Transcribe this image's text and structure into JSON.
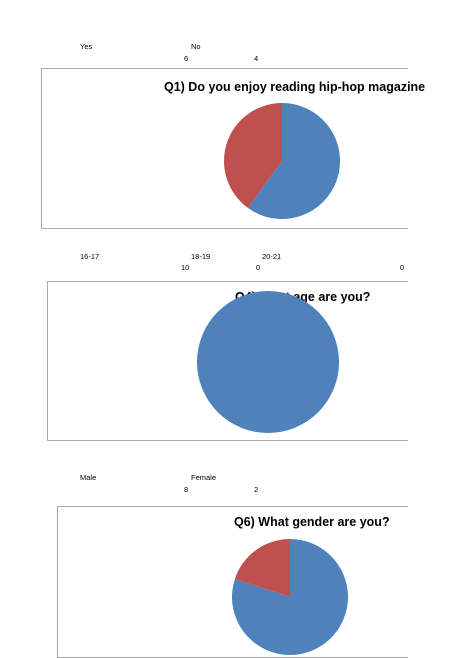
{
  "colors": {
    "blue": "#4f81bd",
    "red": "#c0504d",
    "border": "#a8a8a8"
  },
  "tables": [
    {
      "labels": [
        "Yes",
        "No"
      ],
      "values": [
        "6",
        "4"
      ]
    },
    {
      "labels": [
        "16-17",
        "18-19",
        "20-21"
      ],
      "values": [
        "10",
        "0",
        "0"
      ]
    },
    {
      "labels": [
        "Male",
        "Female"
      ],
      "values": [
        "8",
        "2"
      ]
    }
  ],
  "chart_data": [
    {
      "type": "pie",
      "title": "Q1) Do you enjoy reading hip-hop magazine",
      "categories": [
        "Yes",
        "No"
      ],
      "values": [
        6,
        4
      ],
      "colors": [
        "#4f81bd",
        "#c0504d"
      ]
    },
    {
      "type": "pie",
      "title": "Q4) What age are you?",
      "categories": [
        "16-17",
        "18-19",
        "20-21"
      ],
      "values": [
        10,
        0,
        0
      ],
      "colors": [
        "#4f81bd",
        "#c0504d",
        "#9bbb59"
      ]
    },
    {
      "type": "pie",
      "title": "Q6) What gender are you?",
      "categories": [
        "Male",
        "Female"
      ],
      "values": [
        8,
        2
      ],
      "colors": [
        "#4f81bd",
        "#c0504d"
      ]
    }
  ]
}
